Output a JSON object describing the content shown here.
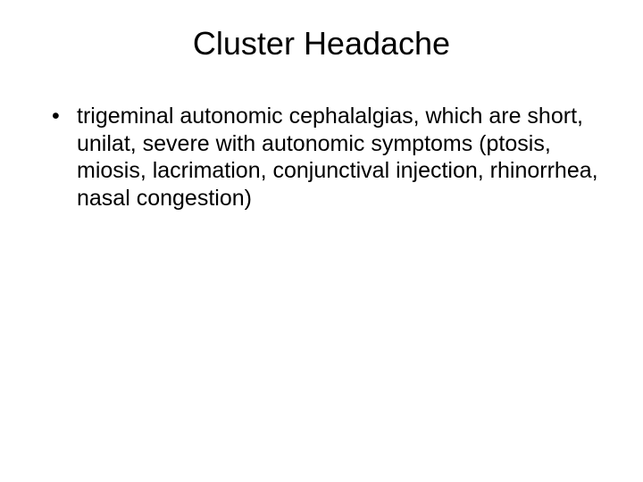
{
  "slide": {
    "title": "Cluster Headache",
    "bullets": [
      {
        "text": "trigeminal autonomic cephalalgias, which are short, unilat, severe with autonomic symptoms (ptosis, miosis, lacrimation, conjunctival injection, rhinorrhea, nasal congestion)"
      }
    ]
  },
  "styling": {
    "background_color": "#ffffff",
    "text_color": "#000000",
    "title_fontsize": 36,
    "body_fontsize": 25,
    "font_family": "Arial"
  }
}
